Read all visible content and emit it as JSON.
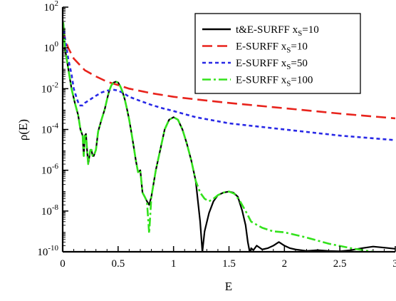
{
  "chart_data": {
    "type": "line",
    "title": "",
    "xlabel": "E",
    "ylabel": "ρ(E)",
    "xlim": [
      0,
      3
    ],
    "ylim": [
      1e-10,
      100
    ],
    "yscale": "log",
    "grid": false,
    "legend_position": "top-right",
    "x_ticks": [
      {
        "value": 0,
        "label": "0"
      },
      {
        "value": 0.5,
        "label": "0.5"
      },
      {
        "value": 1,
        "label": "1"
      },
      {
        "value": 1.5,
        "label": "1.5"
      },
      {
        "value": 2,
        "label": "2"
      },
      {
        "value": 2.5,
        "label": "2.5"
      },
      {
        "value": 3,
        "label": "3"
      }
    ],
    "y_ticks": [
      {
        "value": 1e-10,
        "base": "10",
        "exp": "-10"
      },
      {
        "value": 1e-08,
        "base": "10",
        "exp": "-8"
      },
      {
        "value": 1e-06,
        "base": "10",
        "exp": "-6"
      },
      {
        "value": 0.0001,
        "base": "10",
        "exp": "-4"
      },
      {
        "value": 0.01,
        "base": "10",
        "exp": "-2"
      },
      {
        "value": 1,
        "base": "10",
        "exp": "0"
      },
      {
        "value": 100,
        "base": "10",
        "exp": "2"
      }
    ],
    "series": [
      {
        "name": "t&E-SURFF xS=10",
        "label_main": "t&E-SURFF x",
        "label_sub": "S",
        "label_tail": "=10",
        "color": "#000000",
        "dash": "",
        "x": [
          0.005,
          0.02,
          0.05,
          0.08,
          0.11,
          0.14,
          0.16,
          0.18,
          0.19,
          0.2,
          0.21,
          0.22,
          0.23,
          0.25,
          0.26,
          0.27,
          0.28,
          0.3,
          0.32,
          0.35,
          0.38,
          0.4,
          0.42,
          0.44,
          0.46,
          0.48,
          0.5,
          0.52,
          0.54,
          0.56,
          0.58,
          0.6,
          0.62,
          0.64,
          0.66,
          0.68,
          0.7,
          0.72,
          0.74,
          0.76,
          0.78,
          0.8,
          0.84,
          0.88,
          0.92,
          0.96,
          1.0,
          1.04,
          1.08,
          1.12,
          1.16,
          1.2,
          1.22,
          1.24,
          1.26,
          1.28,
          1.32,
          1.36,
          1.4,
          1.45,
          1.5,
          1.54,
          1.58,
          1.62,
          1.65,
          1.67,
          1.69,
          1.7,
          1.72,
          1.75,
          1.8,
          1.85,
          1.9,
          1.95,
          2.0,
          2.05,
          2.1,
          2.2,
          2.3,
          2.4,
          2.5,
          2.6,
          2.7,
          2.8,
          2.9,
          3.0
        ],
        "y": [
          18,
          1,
          0.1,
          0.01,
          0.002,
          0.0005,
          0.0001,
          5e-05,
          5e-06,
          5e-05,
          6e-05,
          1e-05,
          2e-06,
          1e-05,
          1e-05,
          5e-06,
          5e-06,
          1e-05,
          8e-05,
          0.0003,
          0.001,
          0.003,
          0.008,
          0.015,
          0.02,
          0.022,
          0.02,
          0.013,
          0.007,
          0.003,
          0.001,
          0.0003,
          7e-05,
          1.5e-05,
          3e-06,
          8e-07,
          1e-06,
          8e-08,
          5e-08,
          3e-08,
          2e-08,
          5e-08,
          1e-06,
          1e-05,
          0.0001,
          0.0003,
          0.0004,
          0.0003,
          0.0001,
          2e-05,
          3e-06,
          3e-07,
          3e-08,
          3e-09,
          1e-10,
          1e-09,
          8e-09,
          3e-08,
          6e-08,
          8e-08,
          9e-08,
          8e-08,
          5e-08,
          1e-08,
          2e-09,
          3e-10,
          8e-11,
          1.5e-10,
          1.2e-10,
          2e-10,
          1.3e-10,
          1.5e-10,
          2e-10,
          3e-10,
          2e-10,
          1.5e-10,
          1.3e-10,
          1.1e-10,
          1.2e-10,
          1.1e-10,
          1.05e-10,
          1.2e-10,
          1.5e-10,
          1.8e-10,
          1.6e-10,
          1.4e-10
        ]
      },
      {
        "name": "E-SURFF xS=10",
        "label_main": "E-SURFF x",
        "label_sub": "S",
        "label_tail": "=10",
        "color": "#e8231c",
        "dash": "14,7",
        "x": [
          0.005,
          0.02,
          0.05,
          0.1,
          0.2,
          0.3,
          0.4,
          0.5,
          0.6,
          0.8,
          1.0,
          1.2,
          1.5,
          2.0,
          2.5,
          3.0
        ],
        "y": [
          8,
          3,
          1,
          0.3,
          0.08,
          0.04,
          0.022,
          0.015,
          0.01,
          0.006,
          0.004,
          0.003,
          0.002,
          0.0011,
          0.0006,
          0.00035
        ]
      },
      {
        "name": "E-SURFF xS=50",
        "label_main": "E-SURFF x",
        "label_sub": "S",
        "label_tail": "=50",
        "color": "#2828e6",
        "dash": "5,4",
        "x": [
          0.005,
          0.02,
          0.05,
          0.08,
          0.1,
          0.13,
          0.15,
          0.18,
          0.2,
          0.25,
          0.3,
          0.35,
          0.4,
          0.45,
          0.48,
          0.5,
          0.55,
          0.6,
          0.7,
          0.8,
          0.9,
          1.0,
          1.2,
          1.5,
          2.0,
          2.5,
          3.0
        ],
        "y": [
          15,
          3,
          0.3,
          0.05,
          0.01,
          0.003,
          0.0015,
          0.0015,
          0.002,
          0.003,
          0.0045,
          0.0065,
          0.008,
          0.009,
          0.0085,
          0.008,
          0.006,
          0.004,
          0.0025,
          0.0016,
          0.0011,
          0.0008,
          0.0004,
          0.0002,
          0.0001,
          5e-05,
          3e-05
        ]
      },
      {
        "name": "E-SURFF xS=100",
        "label_main": "E-SURFF x",
        "label_sub": "S",
        "label_tail": "=100",
        "color": "#33e21c",
        "dash": "12,4,3,4",
        "x": [
          0.005,
          0.02,
          0.05,
          0.08,
          0.11,
          0.14,
          0.16,
          0.18,
          0.19,
          0.2,
          0.21,
          0.22,
          0.23,
          0.25,
          0.26,
          0.27,
          0.28,
          0.3,
          0.32,
          0.35,
          0.38,
          0.4,
          0.42,
          0.44,
          0.46,
          0.48,
          0.5,
          0.52,
          0.54,
          0.56,
          0.58,
          0.6,
          0.62,
          0.64,
          0.66,
          0.68,
          0.7,
          0.72,
          0.74,
          0.76,
          0.78,
          0.8,
          0.84,
          0.88,
          0.92,
          0.96,
          1.0,
          1.04,
          1.08,
          1.12,
          1.16,
          1.2,
          1.24,
          1.28,
          1.32,
          1.36,
          1.4,
          1.45,
          1.5,
          1.55,
          1.6,
          1.65,
          1.7,
          1.8,
          1.9,
          2.0,
          2.2,
          2.4,
          2.6,
          2.8,
          3.0
        ],
        "y": [
          18,
          1,
          0.1,
          0.01,
          0.002,
          0.0005,
          0.0001,
          5e-05,
          5e-06,
          5e-05,
          6e-05,
          1e-05,
          2e-06,
          1e-05,
          1e-05,
          5e-06,
          5e-06,
          1e-05,
          8e-05,
          0.0003,
          0.001,
          0.003,
          0.008,
          0.015,
          0.02,
          0.022,
          0.02,
          0.013,
          0.007,
          0.003,
          0.001,
          0.0003,
          7e-05,
          1.5e-05,
          3e-06,
          8e-07,
          1e-06,
          8e-08,
          5e-08,
          3e-08,
          8e-10,
          5e-08,
          1e-06,
          1e-05,
          0.0001,
          0.0003,
          0.0004,
          0.0003,
          0.0001,
          2e-05,
          3e-06,
          3e-07,
          8e-08,
          4e-08,
          3e-08,
          4e-08,
          6e-08,
          8e-08,
          9e-08,
          7e-08,
          3e-08,
          1e-08,
          3e-09,
          1.5e-09,
          1e-09,
          9e-10,
          5e-10,
          2.5e-10,
          1.5e-10,
          1e-10,
          7e-11
        ]
      }
    ]
  }
}
